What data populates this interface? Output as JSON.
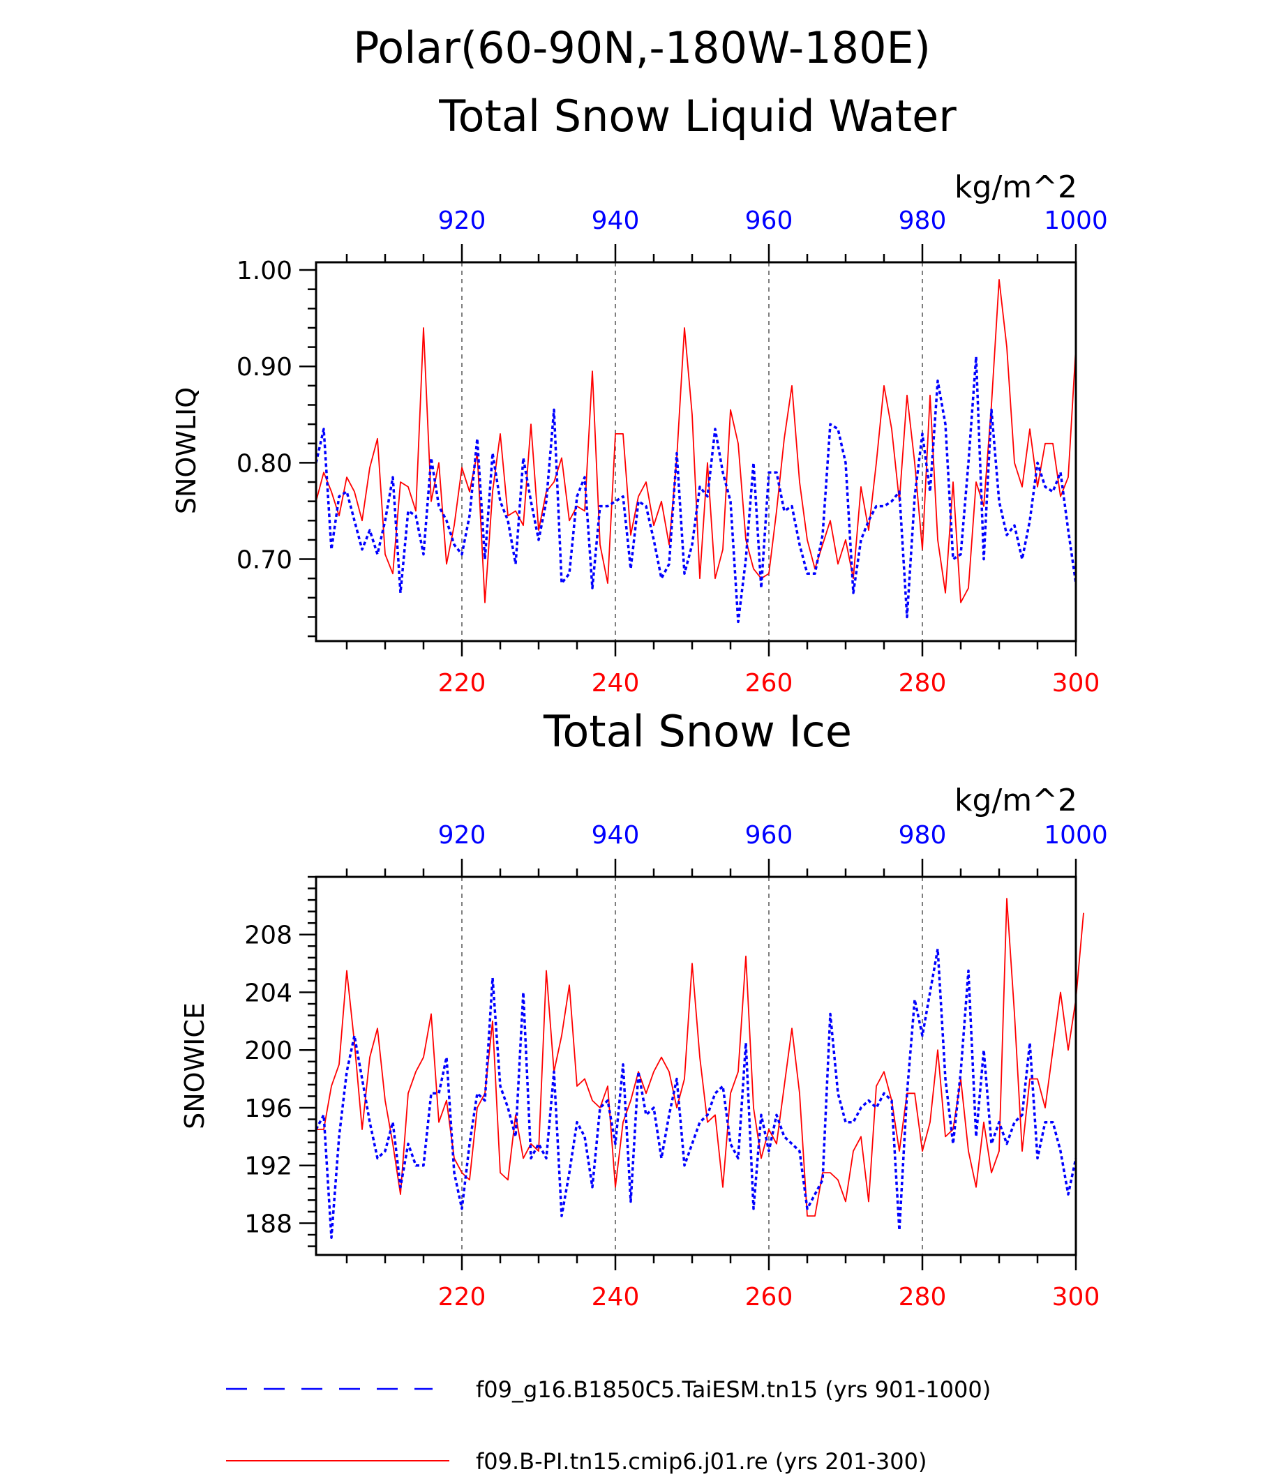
{
  "figure": {
    "title_line1": "Polar(60-90N,-180W-180E)"
  },
  "legend": {
    "entries": [
      {
        "label": "f09_g16.B1850C5.TaiESM.tn15 (yrs 901-1000)",
        "color": "#0000ff",
        "style": "dashed"
      },
      {
        "label": "f09.B-PI.tn15.cmip6.j01.re (yrs 201-300)",
        "color": "#ff0000",
        "style": "solid"
      }
    ]
  },
  "chart_data": [
    {
      "type": "line",
      "title": "Total Snow Liquid Water",
      "ylabel": "SNOWLIQ",
      "units": "kg/m^2",
      "ylim": [
        0.615,
        1.008
      ],
      "yticks": [
        0.7,
        0.8,
        0.9,
        1.0
      ],
      "ytick_labels": [
        "0.70",
        "0.80",
        "0.90",
        "1.00"
      ],
      "bottom_axis": {
        "color": "#ff0000",
        "range": [
          201,
          300
        ],
        "ticks": [
          220,
          240,
          260,
          280,
          300
        ]
      },
      "top_axis": {
        "color": "#0000ff",
        "range": [
          901,
          1000
        ],
        "ticks": [
          920,
          940,
          960,
          980,
          1000
        ]
      },
      "grid": "vertical-dashed",
      "series": [
        {
          "name": "f09.B-PI.tn15.cmip6.j01.re (yrs 201-300)",
          "axis": "bottom",
          "color": "#ff0000",
          "style": "solid",
          "values": [
            0.76,
            0.79,
            0.77,
            0.745,
            0.785,
            0.77,
            0.74,
            0.795,
            0.825,
            0.705,
            0.685,
            0.78,
            0.775,
            0.75,
            0.94,
            0.76,
            0.8,
            0.695,
            0.735,
            0.795,
            0.77,
            0.81,
            0.655,
            0.77,
            0.83,
            0.745,
            0.75,
            0.735,
            0.84,
            0.73,
            0.77,
            0.78,
            0.805,
            0.74,
            0.755,
            0.75,
            0.895,
            0.715,
            0.675,
            0.83,
            0.83,
            0.725,
            0.765,
            0.78,
            0.735,
            0.76,
            0.715,
            0.805,
            0.94,
            0.85,
            0.68,
            0.8,
            0.68,
            0.71,
            0.855,
            0.82,
            0.72,
            0.69,
            0.68,
            0.685,
            0.75,
            0.825,
            0.88,
            0.78,
            0.72,
            0.69,
            0.715,
            0.74,
            0.695,
            0.72,
            0.68,
            0.775,
            0.73,
            0.8,
            0.88,
            0.835,
            0.76,
            0.87,
            0.8,
            0.71,
            0.87,
            0.72,
            0.665,
            0.78,
            0.655,
            0.67,
            0.78,
            0.755,
            0.86,
            0.99,
            0.92,
            0.8,
            0.775,
            0.835,
            0.775,
            0.82,
            0.82,
            0.765,
            0.785,
            0.92
          ]
        },
        {
          "name": "f09_g16.B1850C5.TaiESM.tn15 (yrs 901-1000)",
          "axis": "top",
          "color": "#0000ff",
          "style": "dashed",
          "values": [
            0.8,
            0.835,
            0.71,
            0.765,
            0.77,
            0.74,
            0.71,
            0.73,
            0.705,
            0.74,
            0.785,
            0.665,
            0.75,
            0.745,
            0.705,
            0.805,
            0.755,
            0.74,
            0.715,
            0.705,
            0.745,
            0.825,
            0.7,
            0.81,
            0.76,
            0.74,
            0.695,
            0.805,
            0.76,
            0.72,
            0.76,
            0.855,
            0.675,
            0.685,
            0.765,
            0.785,
            0.67,
            0.755,
            0.755,
            0.76,
            0.765,
            0.69,
            0.76,
            0.755,
            0.72,
            0.68,
            0.695,
            0.81,
            0.685,
            0.715,
            0.775,
            0.765,
            0.835,
            0.79,
            0.76,
            0.635,
            0.7,
            0.8,
            0.67,
            0.79,
            0.79,
            0.75,
            0.755,
            0.715,
            0.685,
            0.685,
            0.725,
            0.84,
            0.835,
            0.8,
            0.665,
            0.72,
            0.74,
            0.755,
            0.755,
            0.76,
            0.77,
            0.64,
            0.765,
            0.83,
            0.77,
            0.885,
            0.84,
            0.7,
            0.705,
            0.8,
            0.91,
            0.7,
            0.855,
            0.76,
            0.725,
            0.735,
            0.7,
            0.74,
            0.8,
            0.775,
            0.77,
            0.79,
            0.73,
            0.675
          ]
        }
      ]
    },
    {
      "type": "line",
      "title": "Total Snow Ice",
      "ylabel": "SNOWICE",
      "units": "kg/m^2",
      "ylim": [
        185.8,
        212.0
      ],
      "yticks": [
        188,
        192,
        196,
        200,
        204,
        208
      ],
      "ytick_labels": [
        "188",
        "192",
        "196",
        "200",
        "204",
        "208"
      ],
      "bottom_axis": {
        "color": "#ff0000",
        "range": [
          201,
          300
        ],
        "ticks": [
          220,
          240,
          260,
          280,
          300
        ]
      },
      "top_axis": {
        "color": "#0000ff",
        "range": [
          901,
          1000
        ],
        "ticks": [
          920,
          940,
          960,
          980,
          1000
        ]
      },
      "grid": "vertical-dashed",
      "series": [
        {
          "name": "f09.B-PI.tn15.cmip6.j01.re (yrs 201-300)",
          "axis": "bottom",
          "color": "#ff0000",
          "style": "solid",
          "values": [
            194.5,
            194.5,
            197.5,
            199.0,
            205.5,
            200.5,
            194.5,
            199.5,
            201.5,
            196.5,
            193.5,
            190.0,
            197.0,
            198.5,
            199.5,
            202.5,
            195.0,
            196.5,
            192.5,
            191.5,
            191.0,
            196.0,
            197.0,
            202.0,
            191.5,
            191.0,
            195.5,
            192.5,
            193.5,
            193.0,
            205.5,
            198.5,
            201.0,
            204.5,
            197.5,
            198.0,
            196.5,
            196.0,
            197.5,
            190.5,
            195.0,
            196.5,
            198.5,
            197.0,
            198.5,
            199.5,
            198.5,
            196.0,
            198.0,
            206.0,
            199.5,
            195.0,
            195.5,
            190.5,
            197.0,
            198.5,
            206.5,
            196.0,
            192.5,
            194.5,
            193.5,
            197.5,
            201.5,
            197.0,
            188.5,
            188.5,
            191.5,
            191.5,
            191.0,
            189.5,
            193.0,
            194.0,
            189.5,
            197.5,
            198.5,
            196.5,
            193.0,
            197.0,
            197.0,
            193.0,
            195.0,
            200.0,
            194.0,
            194.5,
            198.0,
            193.0,
            190.5,
            195.0,
            191.5,
            193.0,
            210.5,
            202.5,
            193.0,
            198.0,
            198.0,
            196.0,
            200.0,
            204.0,
            200.0,
            203.5,
            209.5
          ]
        },
        {
          "name": "f09_g16.B1850C5.TaiESM.tn15 (yrs 901-1000)",
          "axis": "top",
          "color": "#0000ff",
          "style": "dashed",
          "values": [
            194.5,
            195.5,
            187.0,
            194.0,
            198.5,
            201.0,
            198.0,
            195.0,
            192.5,
            193.0,
            195.0,
            190.5,
            193.5,
            192.0,
            192.0,
            197.0,
            197.0,
            199.5,
            191.5,
            189.0,
            193.5,
            197.0,
            196.5,
            205.0,
            197.5,
            196.0,
            194.0,
            204.0,
            192.5,
            193.5,
            192.5,
            198.5,
            188.5,
            191.5,
            195.0,
            194.0,
            190.5,
            196.0,
            196.5,
            193.5,
            199.0,
            189.5,
            198.5,
            195.5,
            196.0,
            192.5,
            195.5,
            198.0,
            192.0,
            193.5,
            195.0,
            195.5,
            197.0,
            197.5,
            193.5,
            192.5,
            200.5,
            189.0,
            195.5,
            193.0,
            195.5,
            194.0,
            193.5,
            193.0,
            189.0,
            190.0,
            191.0,
            202.5,
            197.0,
            195.0,
            195.0,
            196.0,
            196.5,
            196.0,
            197.0,
            196.5,
            187.5,
            197.0,
            203.5,
            201.0,
            204.0,
            207.0,
            198.0,
            193.5,
            198.5,
            205.5,
            194.0,
            200.0,
            193.5,
            195.0,
            193.5,
            195.0,
            195.5,
            200.5,
            192.5,
            195.0,
            195.0,
            193.0,
            190.0,
            192.5
          ]
        }
      ]
    }
  ]
}
